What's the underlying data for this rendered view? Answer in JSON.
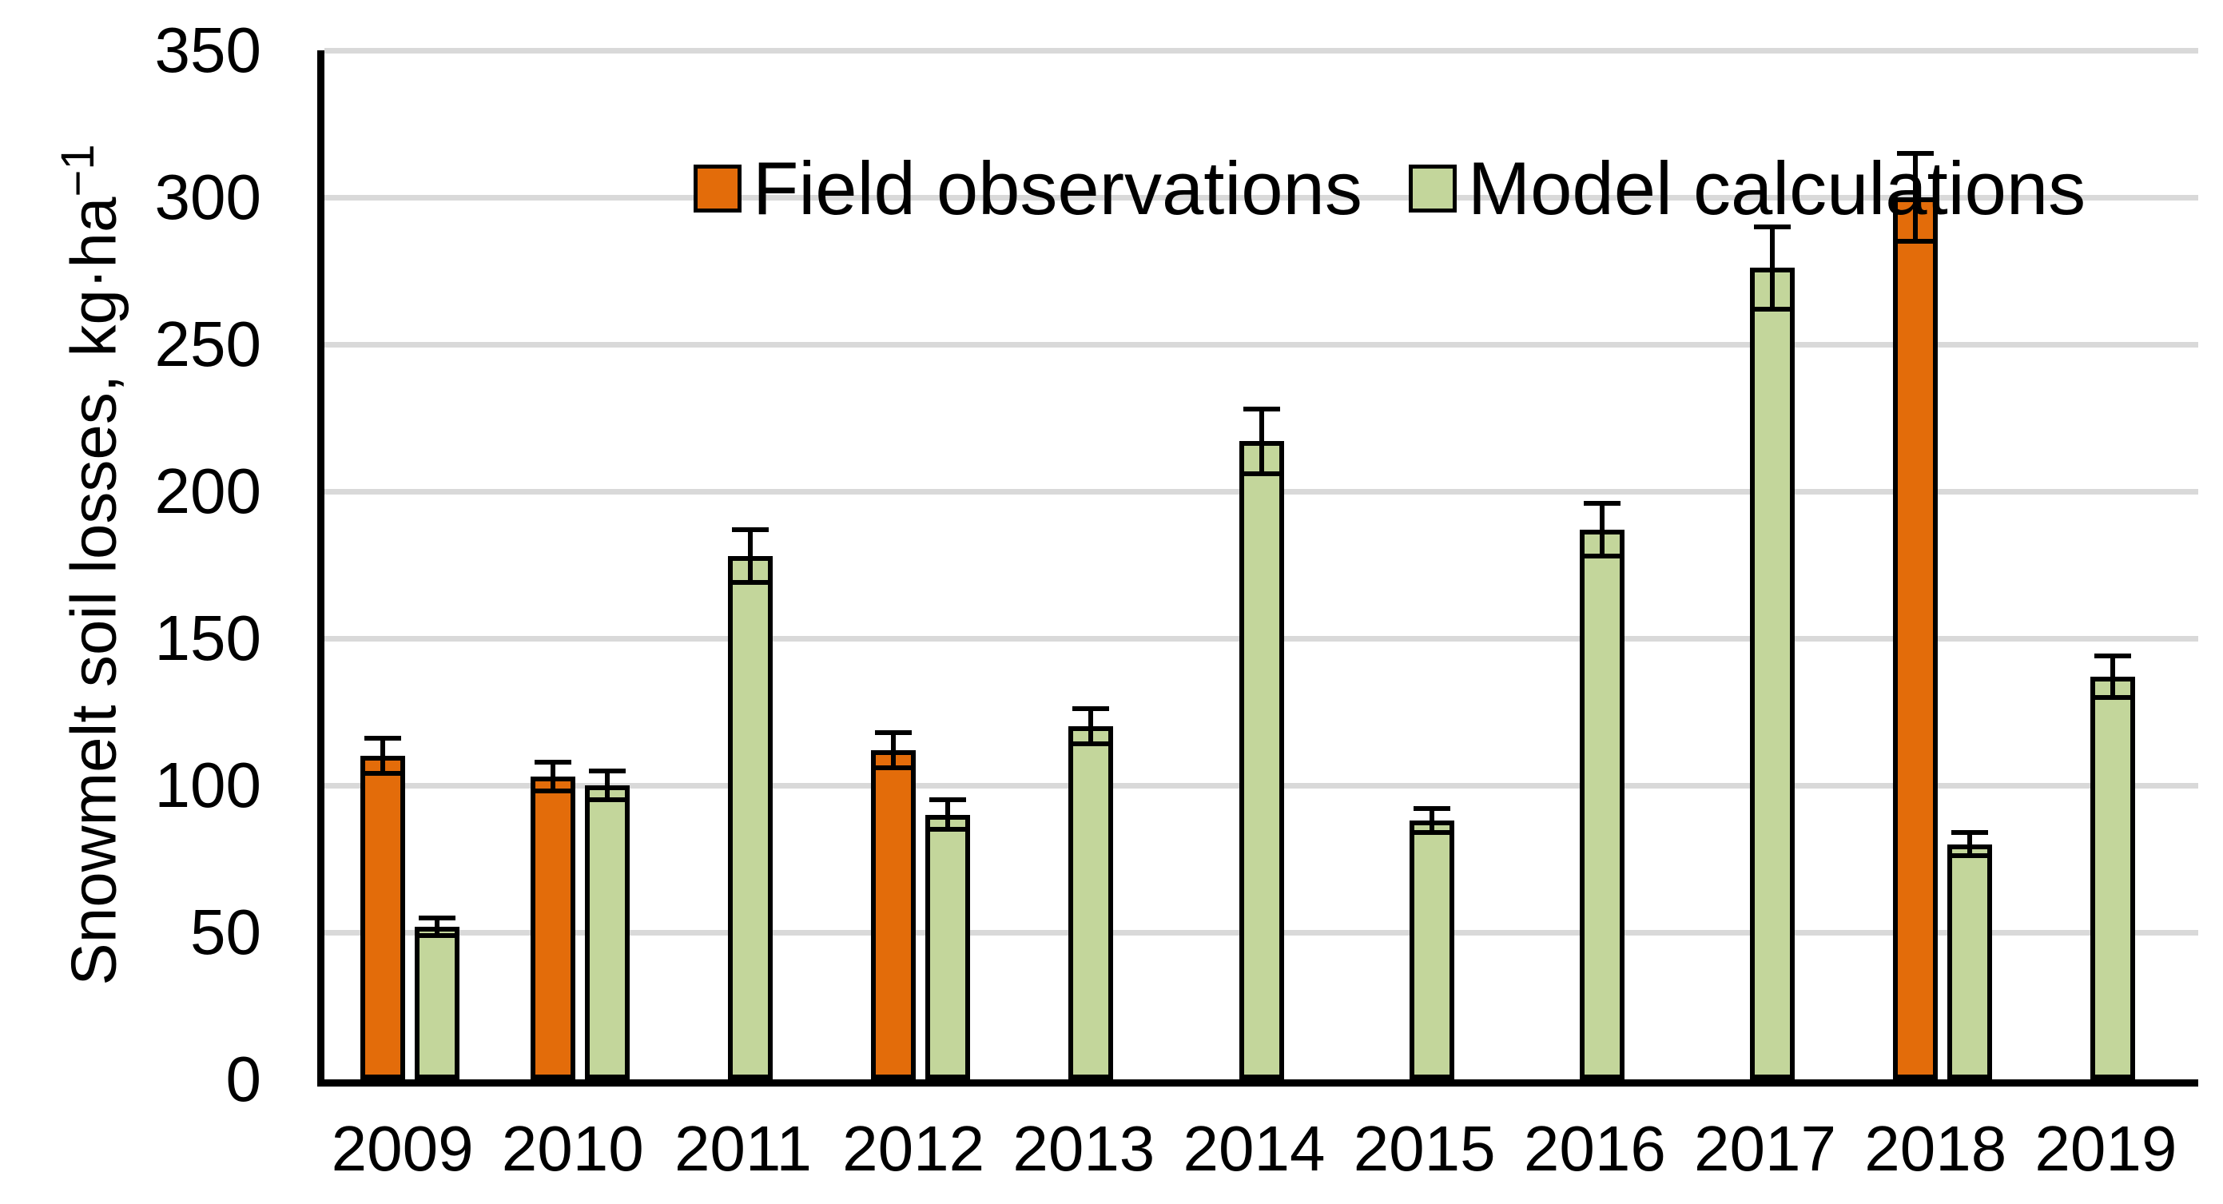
{
  "chart_data": {
    "type": "bar",
    "title": "",
    "ylabel_main": "Snowmelt soil losses, kg·ha",
    "ylabel_sup": "−1",
    "categories": [
      "2009",
      "2010",
      "2011",
      "2012",
      "2013",
      "2014",
      "2015",
      "2016",
      "2017",
      "2018",
      "2019"
    ],
    "series": [
      {
        "name": "Field observations",
        "color": "#E36C0A",
        "values": [
          110,
          103,
          null,
          112,
          null,
          null,
          null,
          null,
          null,
          300,
          null
        ],
        "errors": [
          6,
          5,
          null,
          6,
          null,
          null,
          null,
          null,
          null,
          15,
          null
        ]
      },
      {
        "name": "Model calculations",
        "color": "#C3D69B",
        "values": [
          52,
          100,
          178,
          90,
          120,
          217,
          88,
          187,
          276,
          80,
          137
        ],
        "errors": [
          3,
          5,
          9,
          5,
          6,
          11,
          4,
          9,
          14,
          4,
          7
        ]
      }
    ],
    "ylim": [
      0,
      350
    ],
    "yticks": [
      0,
      50,
      100,
      150,
      200,
      250,
      300,
      350
    ],
    "grid": true,
    "legend_position": "top-left",
    "gridline_color": "#D9D9D9",
    "bar_outline_color": "#000000",
    "error_bar_color": "#000000"
  }
}
